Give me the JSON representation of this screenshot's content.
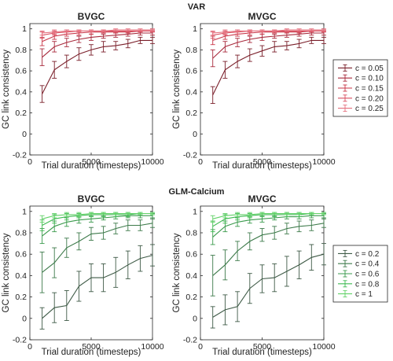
{
  "figure": {
    "section_titles": [
      "VAR",
      "GLM-Calcium"
    ],
    "colors": {
      "var": [
        "#7a1f2a",
        "#a82a3c",
        "#c93547",
        "#d94f60",
        "#e5707e"
      ],
      "glm": [
        "#3e5a46",
        "#3d7a4a",
        "#3a9a4c",
        "#3dba50",
        "#62d268"
      ]
    }
  },
  "chart_data": [
    {
      "type": "line",
      "panel": "var-bvgc",
      "section": "VAR",
      "title": "BVGC",
      "xlabel": "Trial duration (timesteps)",
      "ylabel": "GC link consistency",
      "xlim": [
        0,
        10000
      ],
      "ylim": [
        -0.2,
        1.05
      ],
      "xticks": [
        0,
        5000,
        10000
      ],
      "yticks": [
        -0.2,
        0,
        0.2,
        0.4,
        0.6,
        0.8,
        1
      ],
      "x": [
        1000,
        2000,
        3000,
        4000,
        5000,
        6000,
        7000,
        8000,
        9000,
        10000
      ],
      "series": [
        {
          "name": "c = 0.05",
          "values": [
            0.38,
            0.61,
            0.69,
            0.76,
            0.8,
            0.83,
            0.84,
            0.86,
            0.89,
            0.89
          ],
          "err": [
            0.08,
            0.08,
            0.06,
            0.06,
            0.05,
            0.05,
            0.04,
            0.04,
            0.03,
            0.03
          ]
        },
        {
          "name": "c = 0.10",
          "values": [
            0.73,
            0.83,
            0.87,
            0.9,
            0.92,
            0.93,
            0.94,
            0.95,
            0.96,
            0.96
          ],
          "err": [
            0.08,
            0.05,
            0.04,
            0.03,
            0.03,
            0.02,
            0.02,
            0.02,
            0.02,
            0.02
          ]
        },
        {
          "name": "c = 0.15",
          "values": [
            0.88,
            0.93,
            0.95,
            0.96,
            0.97,
            0.97,
            0.97,
            0.97,
            0.98,
            0.98
          ],
          "err": [
            0.04,
            0.03,
            0.02,
            0.02,
            0.02,
            0.01,
            0.01,
            0.01,
            0.01,
            0.01
          ]
        },
        {
          "name": "c = 0.20",
          "values": [
            0.94,
            0.96,
            0.97,
            0.98,
            0.98,
            0.98,
            0.98,
            0.98,
            0.98,
            0.98
          ],
          "err": [
            0.03,
            0.02,
            0.02,
            0.01,
            0.01,
            0.01,
            0.01,
            0.01,
            0.01,
            0.01
          ]
        },
        {
          "name": "c = 0.25",
          "values": [
            0.96,
            0.97,
            0.98,
            0.98,
            0.98,
            0.98,
            0.99,
            0.99,
            0.99,
            0.99
          ],
          "err": [
            0.02,
            0.02,
            0.01,
            0.01,
            0.01,
            0.01,
            0.01,
            0.01,
            0.01,
            0.01
          ]
        }
      ]
    },
    {
      "type": "line",
      "panel": "var-mvgc",
      "section": "VAR",
      "title": "MVGC",
      "xlabel": "Trial duration (timesteps)",
      "ylabel": "GC link consistency",
      "xlim": [
        0,
        10000
      ],
      "ylim": [
        -0.2,
        1.05
      ],
      "xticks": [
        0,
        5000,
        10000
      ],
      "yticks": [
        -0.2,
        0,
        0.2,
        0.4,
        0.6,
        0.8,
        1
      ],
      "x": [
        1000,
        2000,
        3000,
        4000,
        5000,
        6000,
        7000,
        8000,
        9000,
        10000
      ],
      "series": [
        {
          "name": "c = 0.05",
          "values": [
            0.37,
            0.61,
            0.69,
            0.75,
            0.79,
            0.83,
            0.84,
            0.86,
            0.89,
            0.89
          ],
          "err": [
            0.08,
            0.08,
            0.06,
            0.06,
            0.05,
            0.05,
            0.04,
            0.04,
            0.03,
            0.03
          ]
        },
        {
          "name": "c = 0.10",
          "values": [
            0.72,
            0.83,
            0.87,
            0.9,
            0.92,
            0.93,
            0.94,
            0.95,
            0.96,
            0.96
          ],
          "err": [
            0.08,
            0.05,
            0.04,
            0.03,
            0.03,
            0.02,
            0.02,
            0.02,
            0.02,
            0.02
          ]
        },
        {
          "name": "c = 0.15",
          "values": [
            0.89,
            0.93,
            0.95,
            0.96,
            0.97,
            0.97,
            0.97,
            0.97,
            0.98,
            0.98
          ],
          "err": [
            0.04,
            0.03,
            0.02,
            0.02,
            0.02,
            0.01,
            0.01,
            0.01,
            0.01,
            0.01
          ]
        },
        {
          "name": "c = 0.20",
          "values": [
            0.94,
            0.96,
            0.97,
            0.98,
            0.98,
            0.98,
            0.98,
            0.98,
            0.98,
            0.98
          ],
          "err": [
            0.03,
            0.02,
            0.02,
            0.01,
            0.01,
            0.01,
            0.01,
            0.01,
            0.01,
            0.01
          ]
        },
        {
          "name": "c = 0.25",
          "values": [
            0.96,
            0.97,
            0.98,
            0.98,
            0.98,
            0.98,
            0.99,
            0.99,
            0.99,
            0.99
          ],
          "err": [
            0.02,
            0.02,
            0.01,
            0.01,
            0.01,
            0.01,
            0.01,
            0.01,
            0.01,
            0.01
          ]
        }
      ]
    },
    {
      "type": "line",
      "panel": "glm-bvgc",
      "section": "GLM-Calcium",
      "title": "BVGC",
      "xlabel": "Trial duration (timesteps)",
      "ylabel": "GC link consistency",
      "xlim": [
        0,
        10000
      ],
      "ylim": [
        -0.2,
        1.05
      ],
      "xticks": [
        0,
        5000,
        10000
      ],
      "yticks": [
        -0.2,
        0,
        0.2,
        0.4,
        0.6,
        0.8,
        1
      ],
      "x": [
        1000,
        2000,
        3000,
        4000,
        5000,
        6000,
        7000,
        8000,
        9000,
        10000
      ],
      "series": [
        {
          "name": "c = 0.2",
          "values": [
            0.0,
            0.1,
            0.12,
            0.3,
            0.38,
            0.38,
            0.43,
            0.5,
            0.56,
            0.59
          ],
          "err": [
            0.1,
            0.14,
            0.14,
            0.14,
            0.13,
            0.13,
            0.14,
            0.13,
            0.12,
            0.1
          ]
        },
        {
          "name": "c = 0.4",
          "values": [
            0.43,
            0.52,
            0.66,
            0.72,
            0.79,
            0.8,
            0.84,
            0.87,
            0.87,
            0.89
          ],
          "err": [
            0.19,
            0.14,
            0.09,
            0.08,
            0.06,
            0.06,
            0.05,
            0.05,
            0.05,
            0.04
          ]
        },
        {
          "name": "c = 0.6",
          "values": [
            0.77,
            0.86,
            0.9,
            0.92,
            0.93,
            0.94,
            0.95,
            0.96,
            0.96,
            0.96
          ],
          "err": [
            0.07,
            0.05,
            0.04,
            0.03,
            0.03,
            0.02,
            0.02,
            0.02,
            0.02,
            0.02
          ]
        },
        {
          "name": "c = 0.8",
          "values": [
            0.87,
            0.93,
            0.95,
            0.96,
            0.97,
            0.97,
            0.97,
            0.97,
            0.98,
            0.98
          ],
          "err": [
            0.05,
            0.04,
            0.03,
            0.02,
            0.02,
            0.02,
            0.02,
            0.02,
            0.01,
            0.01
          ]
        },
        {
          "name": "c = 1",
          "values": [
            0.93,
            0.96,
            0.97,
            0.97,
            0.98,
            0.98,
            0.98,
            0.98,
            0.98,
            0.98
          ],
          "err": [
            0.03,
            0.02,
            0.02,
            0.02,
            0.01,
            0.01,
            0.01,
            0.01,
            0.01,
            0.01
          ]
        }
      ]
    },
    {
      "type": "line",
      "panel": "glm-mvgc",
      "section": "GLM-Calcium",
      "title": "MVGC",
      "xlabel": "Trial duration (timesteps)",
      "ylabel": "GC link consistency",
      "xlim": [
        0,
        10000
      ],
      "ylim": [
        -0.2,
        1.05
      ],
      "xticks": [
        0,
        5000,
        10000
      ],
      "yticks": [
        -0.2,
        0,
        0.2,
        0.4,
        0.6,
        0.8,
        1
      ],
      "x": [
        1000,
        2000,
        3000,
        4000,
        5000,
        6000,
        7000,
        8000,
        9000,
        10000
      ],
      "series": [
        {
          "name": "c = 0.2",
          "values": [
            0.01,
            0.08,
            0.11,
            0.28,
            0.37,
            0.38,
            0.44,
            0.5,
            0.57,
            0.6
          ],
          "err": [
            0.1,
            0.14,
            0.14,
            0.14,
            0.13,
            0.13,
            0.14,
            0.13,
            0.12,
            0.1
          ]
        },
        {
          "name": "c = 0.4",
          "values": [
            0.4,
            0.5,
            0.63,
            0.72,
            0.78,
            0.8,
            0.84,
            0.86,
            0.87,
            0.89
          ],
          "err": [
            0.19,
            0.14,
            0.09,
            0.08,
            0.06,
            0.06,
            0.05,
            0.05,
            0.05,
            0.04
          ]
        },
        {
          "name": "c = 0.6",
          "values": [
            0.76,
            0.86,
            0.9,
            0.92,
            0.93,
            0.94,
            0.95,
            0.95,
            0.96,
            0.96
          ],
          "err": [
            0.07,
            0.05,
            0.04,
            0.03,
            0.03,
            0.02,
            0.02,
            0.02,
            0.02,
            0.02
          ]
        },
        {
          "name": "c = 0.8",
          "values": [
            0.86,
            0.93,
            0.95,
            0.96,
            0.97,
            0.97,
            0.97,
            0.97,
            0.98,
            0.98
          ],
          "err": [
            0.05,
            0.04,
            0.03,
            0.02,
            0.02,
            0.02,
            0.02,
            0.02,
            0.01,
            0.01
          ]
        },
        {
          "name": "c = 1",
          "values": [
            0.93,
            0.96,
            0.97,
            0.97,
            0.98,
            0.98,
            0.98,
            0.98,
            0.98,
            0.98
          ],
          "err": [
            0.03,
            0.02,
            0.02,
            0.02,
            0.01,
            0.01,
            0.01,
            0.01,
            0.01,
            0.01
          ]
        }
      ]
    }
  ]
}
